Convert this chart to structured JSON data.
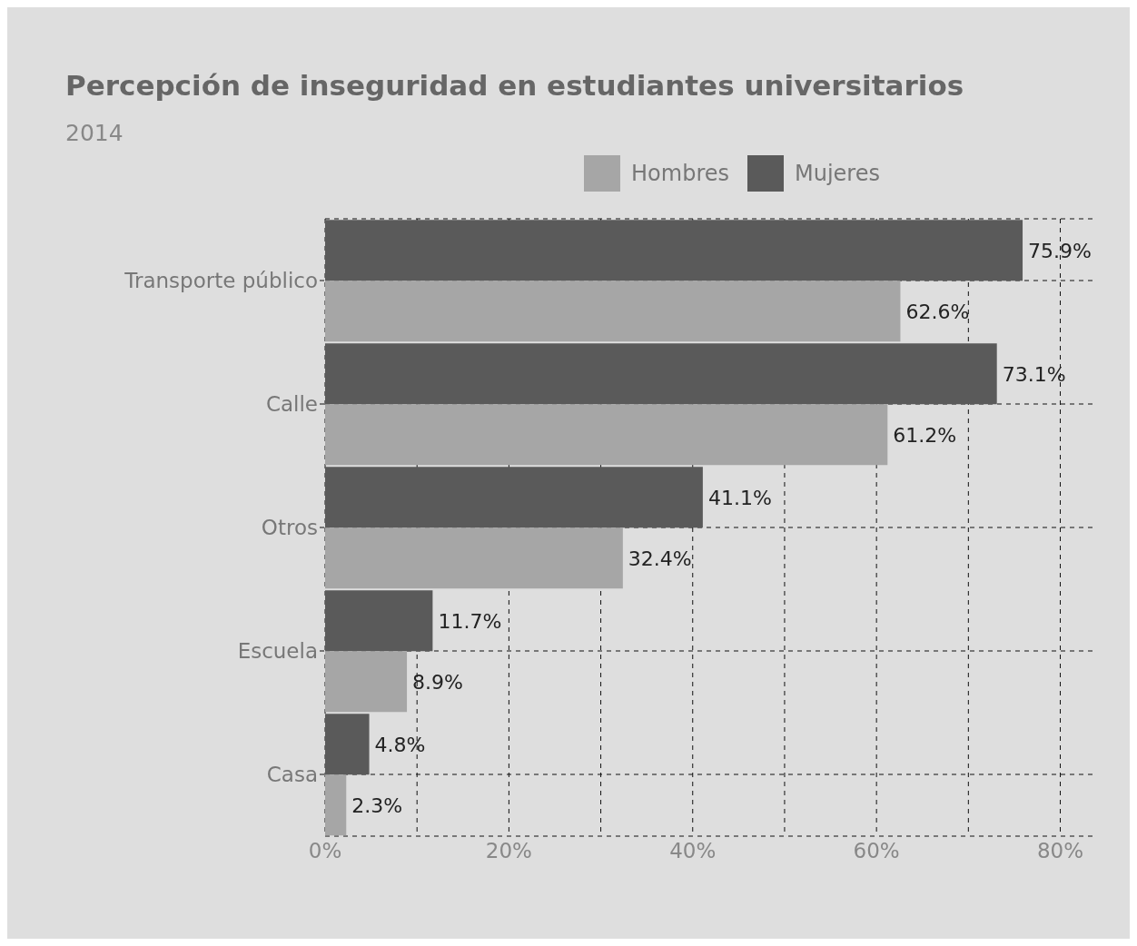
{
  "chart_data": {
    "type": "bar",
    "orientation": "horizontal",
    "title": "Percepción de inseguridad en estudiantes universitarios",
    "subtitle": "2014",
    "categories": [
      "Transporte público",
      "Calle",
      "Otros",
      "Escuela",
      "Casa"
    ],
    "series": [
      {
        "name": "Hombres",
        "color": "#a6a6a6",
        "values": [
          62.6,
          61.2,
          32.4,
          8.9,
          2.3
        ],
        "value_labels": [
          "62.6%",
          "61.2%",
          "32.4%",
          "8.9%",
          "2.3%"
        ]
      },
      {
        "name": "Mujeres",
        "color": "#5a5a5a",
        "values": [
          75.9,
          73.1,
          41.1,
          11.7,
          4.8
        ],
        "value_labels": [
          "75.9%",
          "73.1%",
          "41.1%",
          "11.7%",
          "4.8%"
        ]
      }
    ],
    "xlim": [
      0,
      84
    ],
    "xticks": [
      {
        "value": 0,
        "label": "0%"
      },
      {
        "value": 10,
        "label": null
      },
      {
        "value": 20,
        "label": "20%"
      },
      {
        "value": 30,
        "label": null
      },
      {
        "value": 40,
        "label": "40%"
      },
      {
        "value": 50,
        "label": null
      },
      {
        "value": 60,
        "label": "60%"
      },
      {
        "value": 70,
        "label": null
      },
      {
        "value": 80,
        "label": "80%"
      }
    ],
    "grid": true,
    "legend": "top"
  }
}
